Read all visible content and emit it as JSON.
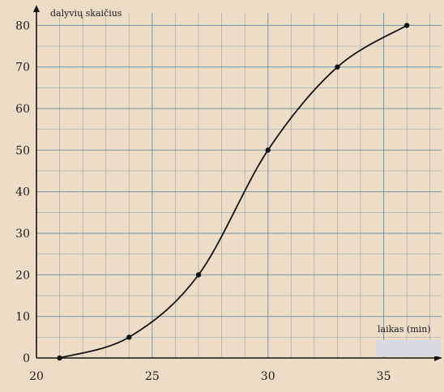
{
  "chart_data": {
    "type": "line",
    "title": "",
    "xlabel": "laikas (min)",
    "ylabel": "dalyvių skaičius",
    "xlim": [
      20,
      37.5
    ],
    "ylim": [
      0,
      83
    ],
    "xticks": [
      20,
      25,
      30,
      35
    ],
    "yticks": [
      0,
      10,
      20,
      30,
      40,
      50,
      60,
      70,
      80
    ],
    "grid": true,
    "smooth": true,
    "series": [
      {
        "x": [
          21,
          24,
          27,
          30,
          33,
          36
        ],
        "y": [
          0,
          5,
          20,
          50,
          70,
          80
        ]
      }
    ],
    "colors": {
      "background": "#eddcc6",
      "grid": "#6f8fa3",
      "line": "#141414",
      "axis": "#141414",
      "label_box": "#d7dbe3"
    }
  }
}
